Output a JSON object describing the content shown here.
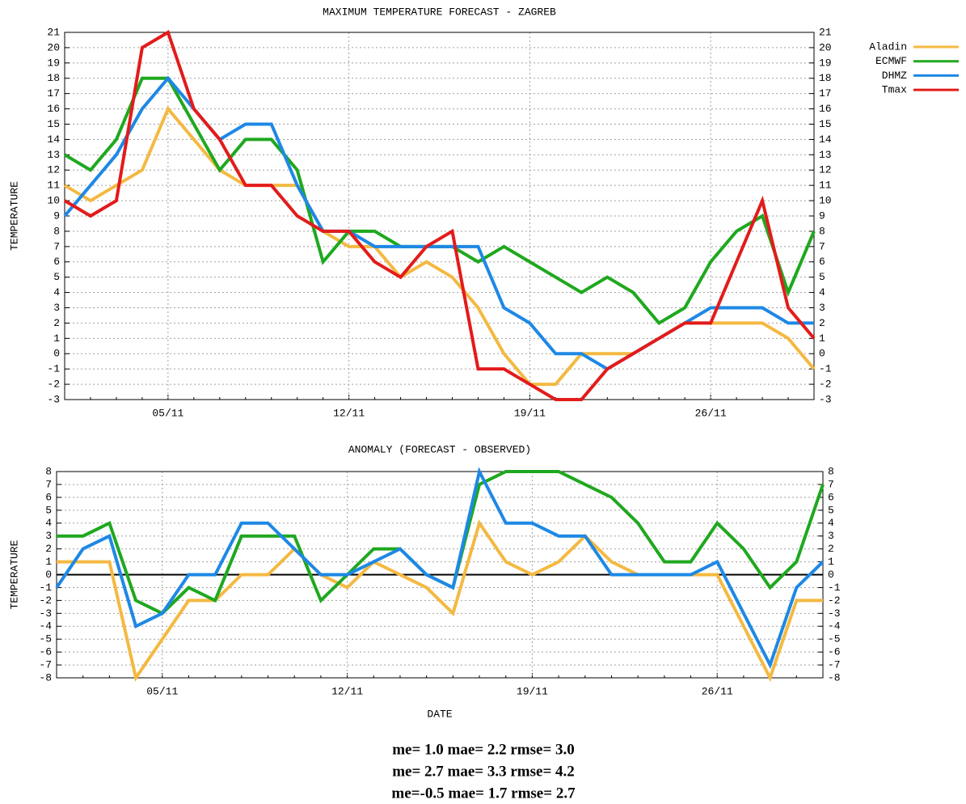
{
  "chart_data": [
    {
      "type": "line",
      "title": "MAXIMUM TEMPERATURE FORECAST - ZAGREB",
      "y_label": "TEMPERATURE",
      "categories": [
        null,
        null,
        null,
        null,
        "05/11",
        null,
        null,
        null,
        null,
        null,
        null,
        "12/11",
        null,
        null,
        null,
        null,
        null,
        null,
        "19/11",
        null,
        null,
        null,
        null,
        null,
        null,
        "26/11",
        null,
        null,
        null,
        null
      ],
      "ylim": [
        -3,
        21
      ],
      "yticks": [
        -3,
        -2,
        -1,
        0,
        1,
        2,
        3,
        4,
        5,
        6,
        7,
        8,
        9,
        10,
        11,
        12,
        13,
        14,
        15,
        16,
        17,
        18,
        19,
        20,
        21
      ],
      "y2lim": [
        -3,
        21
      ],
      "y2ticks": [
        -3,
        -2,
        -1,
        0,
        1,
        2,
        3,
        4,
        5,
        6,
        7,
        8,
        9,
        10,
        11,
        12,
        13,
        14,
        15,
        16,
        17,
        18,
        19,
        20,
        21
      ],
      "grid": true,
      "legend": "top-right",
      "series": [
        {
          "name": "Aladin",
          "color": "#f4b942",
          "values": [
            11,
            10,
            11,
            12,
            16,
            14,
            12,
            11,
            11,
            11,
            8,
            7,
            7,
            5,
            6,
            5,
            3,
            0,
            -2,
            -2,
            0,
            0,
            0,
            1,
            2,
            2,
            2,
            2,
            1,
            -1
          ]
        },
        {
          "name": "ECMWF",
          "color": "#1fa81f",
          "values": [
            13,
            12,
            14,
            18,
            18,
            15,
            12,
            14,
            14,
            12,
            6,
            8,
            8,
            7,
            7,
            7,
            6,
            7,
            6,
            5,
            4,
            5,
            4,
            2,
            3,
            6,
            8,
            9,
            4,
            8
          ]
        },
        {
          "name": "DHMZ",
          "color": "#1e88e5",
          "values": [
            9,
            11,
            13,
            16,
            18,
            16,
            14,
            15,
            15,
            11,
            8,
            8,
            7,
            7,
            7,
            7,
            7,
            3,
            2,
            0,
            0,
            -1,
            0,
            1,
            2,
            3,
            3,
            3,
            2,
            2
          ]
        },
        {
          "name": "Tmax",
          "color": "#e31b1b",
          "values": [
            10,
            9,
            10,
            20,
            21,
            16,
            14,
            11,
            11,
            9,
            8,
            8,
            6,
            5,
            7,
            8,
            -1,
            -1,
            -2,
            -3,
            -3,
            -1,
            0,
            1,
            2,
            2,
            6,
            10,
            3,
            1
          ]
        }
      ]
    },
    {
      "type": "line",
      "title": "ANOMALY (FORECAST - OBSERVED)",
      "y_label": "TEMPERATURE",
      "x_label": "DATE",
      "categories": [
        null,
        null,
        null,
        null,
        "05/11",
        null,
        null,
        null,
        null,
        null,
        null,
        "12/11",
        null,
        null,
        null,
        null,
        null,
        null,
        "19/11",
        null,
        null,
        null,
        null,
        null,
        null,
        "26/11",
        null,
        null,
        null,
        null
      ],
      "ylim": [
        -8,
        8
      ],
      "yticks": [
        -8,
        -7,
        -6,
        -5,
        -4,
        -3,
        -2,
        -1,
        0,
        1,
        2,
        3,
        4,
        5,
        6,
        7,
        8
      ],
      "y2lim": [
        -8,
        8
      ],
      "y2ticks": [
        -8,
        -7,
        -6,
        -5,
        -4,
        -3,
        -2,
        -1,
        0,
        1,
        2,
        3,
        4,
        5,
        6,
        7,
        8
      ],
      "grid": true,
      "zero_line": true,
      "series": [
        {
          "name": "Aladin",
          "color": "#f4b942",
          "values": [
            1,
            1,
            1,
            -8,
            -5,
            -2,
            -2,
            0,
            0,
            2,
            0,
            -1,
            1,
            0,
            -1,
            -3,
            4,
            1,
            0,
            1,
            3,
            1,
            0,
            0,
            0,
            0,
            -4,
            -8,
            -2,
            -2
          ]
        },
        {
          "name": "ECMWF",
          "color": "#1fa81f",
          "values": [
            3,
            3,
            4,
            -2,
            -3,
            -1,
            -2,
            3,
            3,
            3,
            -2,
            0,
            2,
            2,
            0,
            -1,
            7,
            8,
            8,
            8,
            7,
            6,
            4,
            1,
            1,
            4,
            2,
            -1,
            1,
            7
          ]
        },
        {
          "name": "DHMZ",
          "color": "#1e88e5",
          "values": [
            -1,
            2,
            3,
            -4,
            -3,
            0,
            0,
            4,
            4,
            2,
            0,
            0,
            1,
            2,
            0,
            -1,
            8,
            4,
            4,
            3,
            3,
            0,
            0,
            0,
            0,
            1,
            -3,
            -7,
            -1,
            1
          ]
        }
      ],
      "annotations": [
        {
          "text": "me= 1.0 mae= 2.2 rmse= 3.0",
          "color": "#1a1ad0"
        },
        {
          "text": "me= 2.7 mae= 3.3 rmse= 4.2",
          "color": "#22dd22"
        },
        {
          "text": "me=-0.5 mae= 1.7 rmse= 2.7",
          "color": "#e8872a"
        }
      ]
    }
  ]
}
